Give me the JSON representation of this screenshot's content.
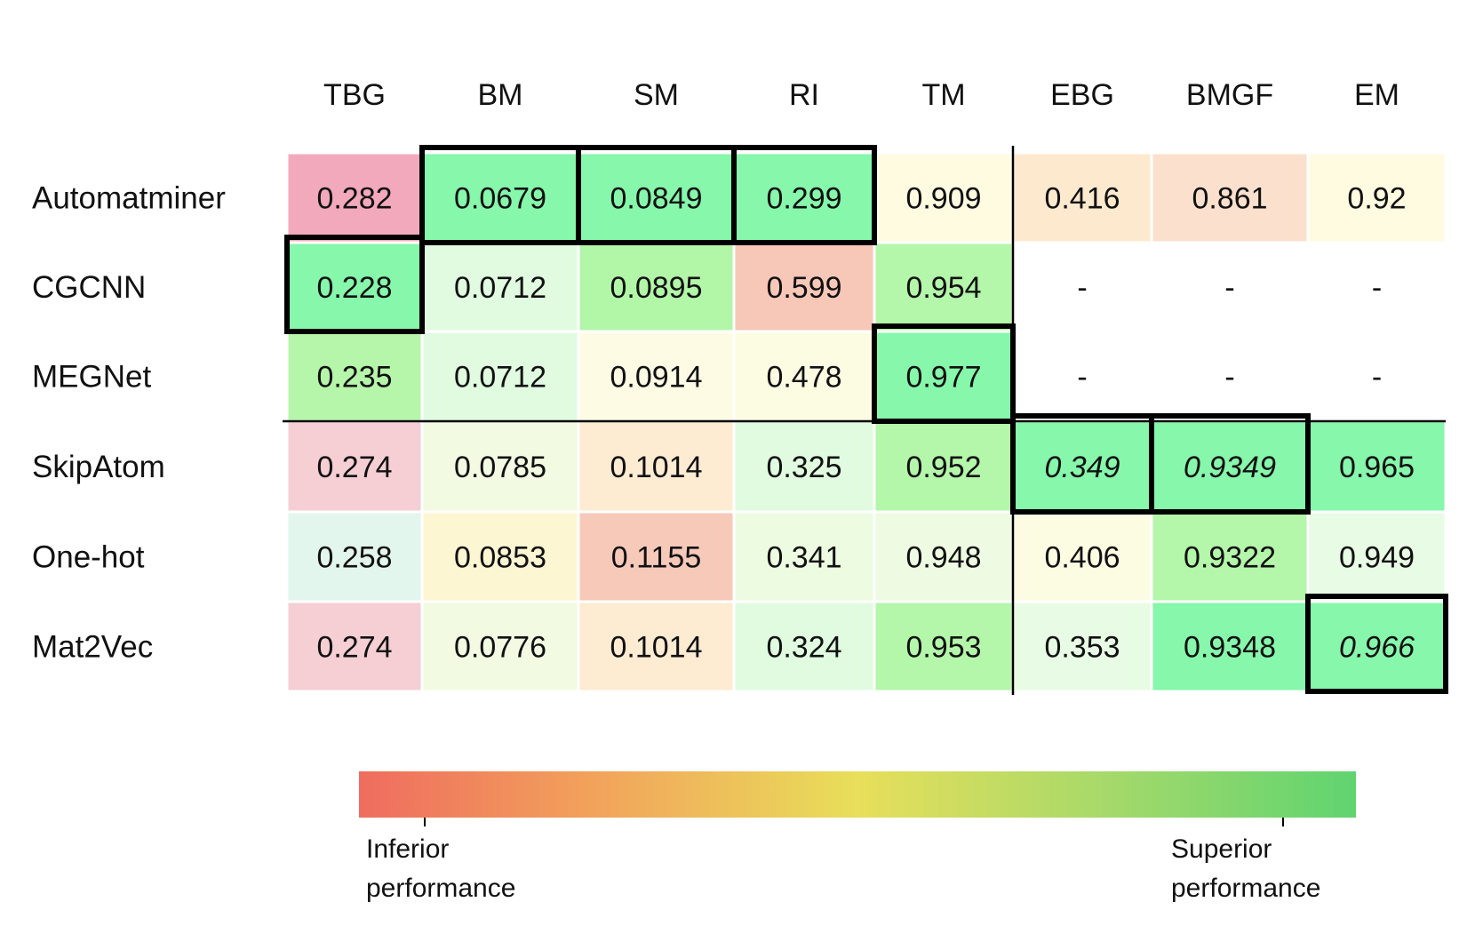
{
  "chart_data": {
    "type": "heatmap",
    "title": "",
    "columns": [
      "TBG",
      "BM",
      "SM",
      "RI",
      "TM",
      "EBG",
      "BMGF",
      "EM"
    ],
    "rows": [
      "Automatminer",
      "CGCNN",
      "MEGNet",
      "SkipAtom",
      "One-hot",
      "Mat2Vec"
    ],
    "cells": [
      [
        "0.282",
        "0.0679",
        "0.0849",
        "0.299",
        "0.909",
        "0.416",
        "0.861",
        "0.92"
      ],
      [
        "0.228",
        "0.0712",
        "0.0895",
        "0.599",
        "0.954",
        "-",
        "-",
        "-"
      ],
      [
        "0.235",
        "0.0712",
        "0.0914",
        "0.478",
        "0.977",
        "-",
        "-",
        "-"
      ],
      [
        "0.274",
        "0.0785",
        "0.1014",
        "0.325",
        "0.952",
        "0.349",
        "0.9349",
        "0.965"
      ],
      [
        "0.258",
        "0.0853",
        "0.1155",
        "0.341",
        "0.948",
        "0.406",
        "0.9322",
        "0.949"
      ],
      [
        "0.274",
        "0.0776",
        "0.1014",
        "0.324",
        "0.953",
        "0.353",
        "0.9348",
        "0.966"
      ]
    ],
    "cell_colors": [
      [
        "#f3a9bc",
        "#86f7ab",
        "#86f7ab",
        "#86f7ab",
        "#fefbe1",
        "#fde9cd",
        "#fbe0cd",
        "#fefbe1"
      ],
      [
        "#86f7ab",
        "#e0fbe0",
        "#b2f6a8",
        "#f7c7b8",
        "#b4f6aa",
        "#ffffff",
        "#ffffff",
        "#ffffff"
      ],
      [
        "#b6f6aa",
        "#e0fbe0",
        "#fefbe4",
        "#fcfce2",
        "#86f7ab",
        "#ffffff",
        "#ffffff",
        "#ffffff"
      ],
      [
        "#f5cfd4",
        "#f2fbe2",
        "#fdebd2",
        "#e0fbe0",
        "#b4f6aa",
        "#86f7ab",
        "#86f7ab",
        "#86f7ab"
      ],
      [
        "#e2f6ed",
        "#fdf6d2",
        "#f7c9b9",
        "#edfbe1",
        "#eefbe2",
        "#fcfce3",
        "#b4f6aa",
        "#e8fbe4"
      ],
      [
        "#f5cfd4",
        "#f2fbe2",
        "#fdebd2",
        "#e0fbe0",
        "#b4f6aa",
        "#e8fbe4",
        "#86f7ab",
        "#86f7ab"
      ]
    ],
    "italic_cells": [
      [
        3,
        5
      ],
      [
        3,
        6
      ],
      [
        5,
        7
      ]
    ],
    "best_boxes": [
      [
        0,
        1
      ],
      [
        0,
        2
      ],
      [
        0,
        3
      ],
      [
        1,
        0
      ],
      [
        2,
        4
      ],
      [
        3,
        5
      ],
      [
        3,
        6
      ],
      [
        5,
        7
      ]
    ],
    "colorscale": {
      "low_label": "Inferior\nperformance",
      "high_label": "Superior\nperformance",
      "stops": [
        "#ef6c5e",
        "#f2a65b",
        "#e8df5a",
        "#a6d96a",
        "#5fd470"
      ]
    },
    "grid": false
  }
}
